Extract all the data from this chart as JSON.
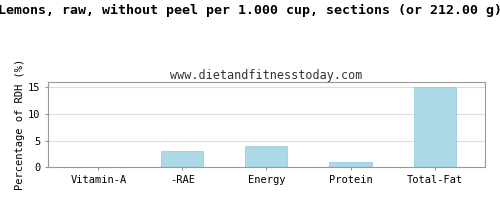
{
  "title": "Lemons, raw, without peel per 1.000 cup, sections (or 212.00 g)",
  "subtitle": "www.dietandfitnesstoday.com",
  "categories": [
    "Vitamin-A",
    "-RAE",
    "Energy",
    "Protein",
    "Total-Fat"
  ],
  "values": [
    0.0,
    3.0,
    4.0,
    1.0,
    15.0
  ],
  "bar_color": "#add8e6",
  "ylabel": "Percentage of RDH (%)",
  "ylim": [
    0,
    16
  ],
  "yticks": [
    0,
    5,
    10,
    15
  ],
  "background_color": "#ffffff",
  "title_fontsize": 9.5,
  "subtitle_fontsize": 8.5,
  "ylabel_fontsize": 7.5,
  "tick_fontsize": 7.5,
  "border_color": "#999999",
  "grid_color": "#dddddd"
}
